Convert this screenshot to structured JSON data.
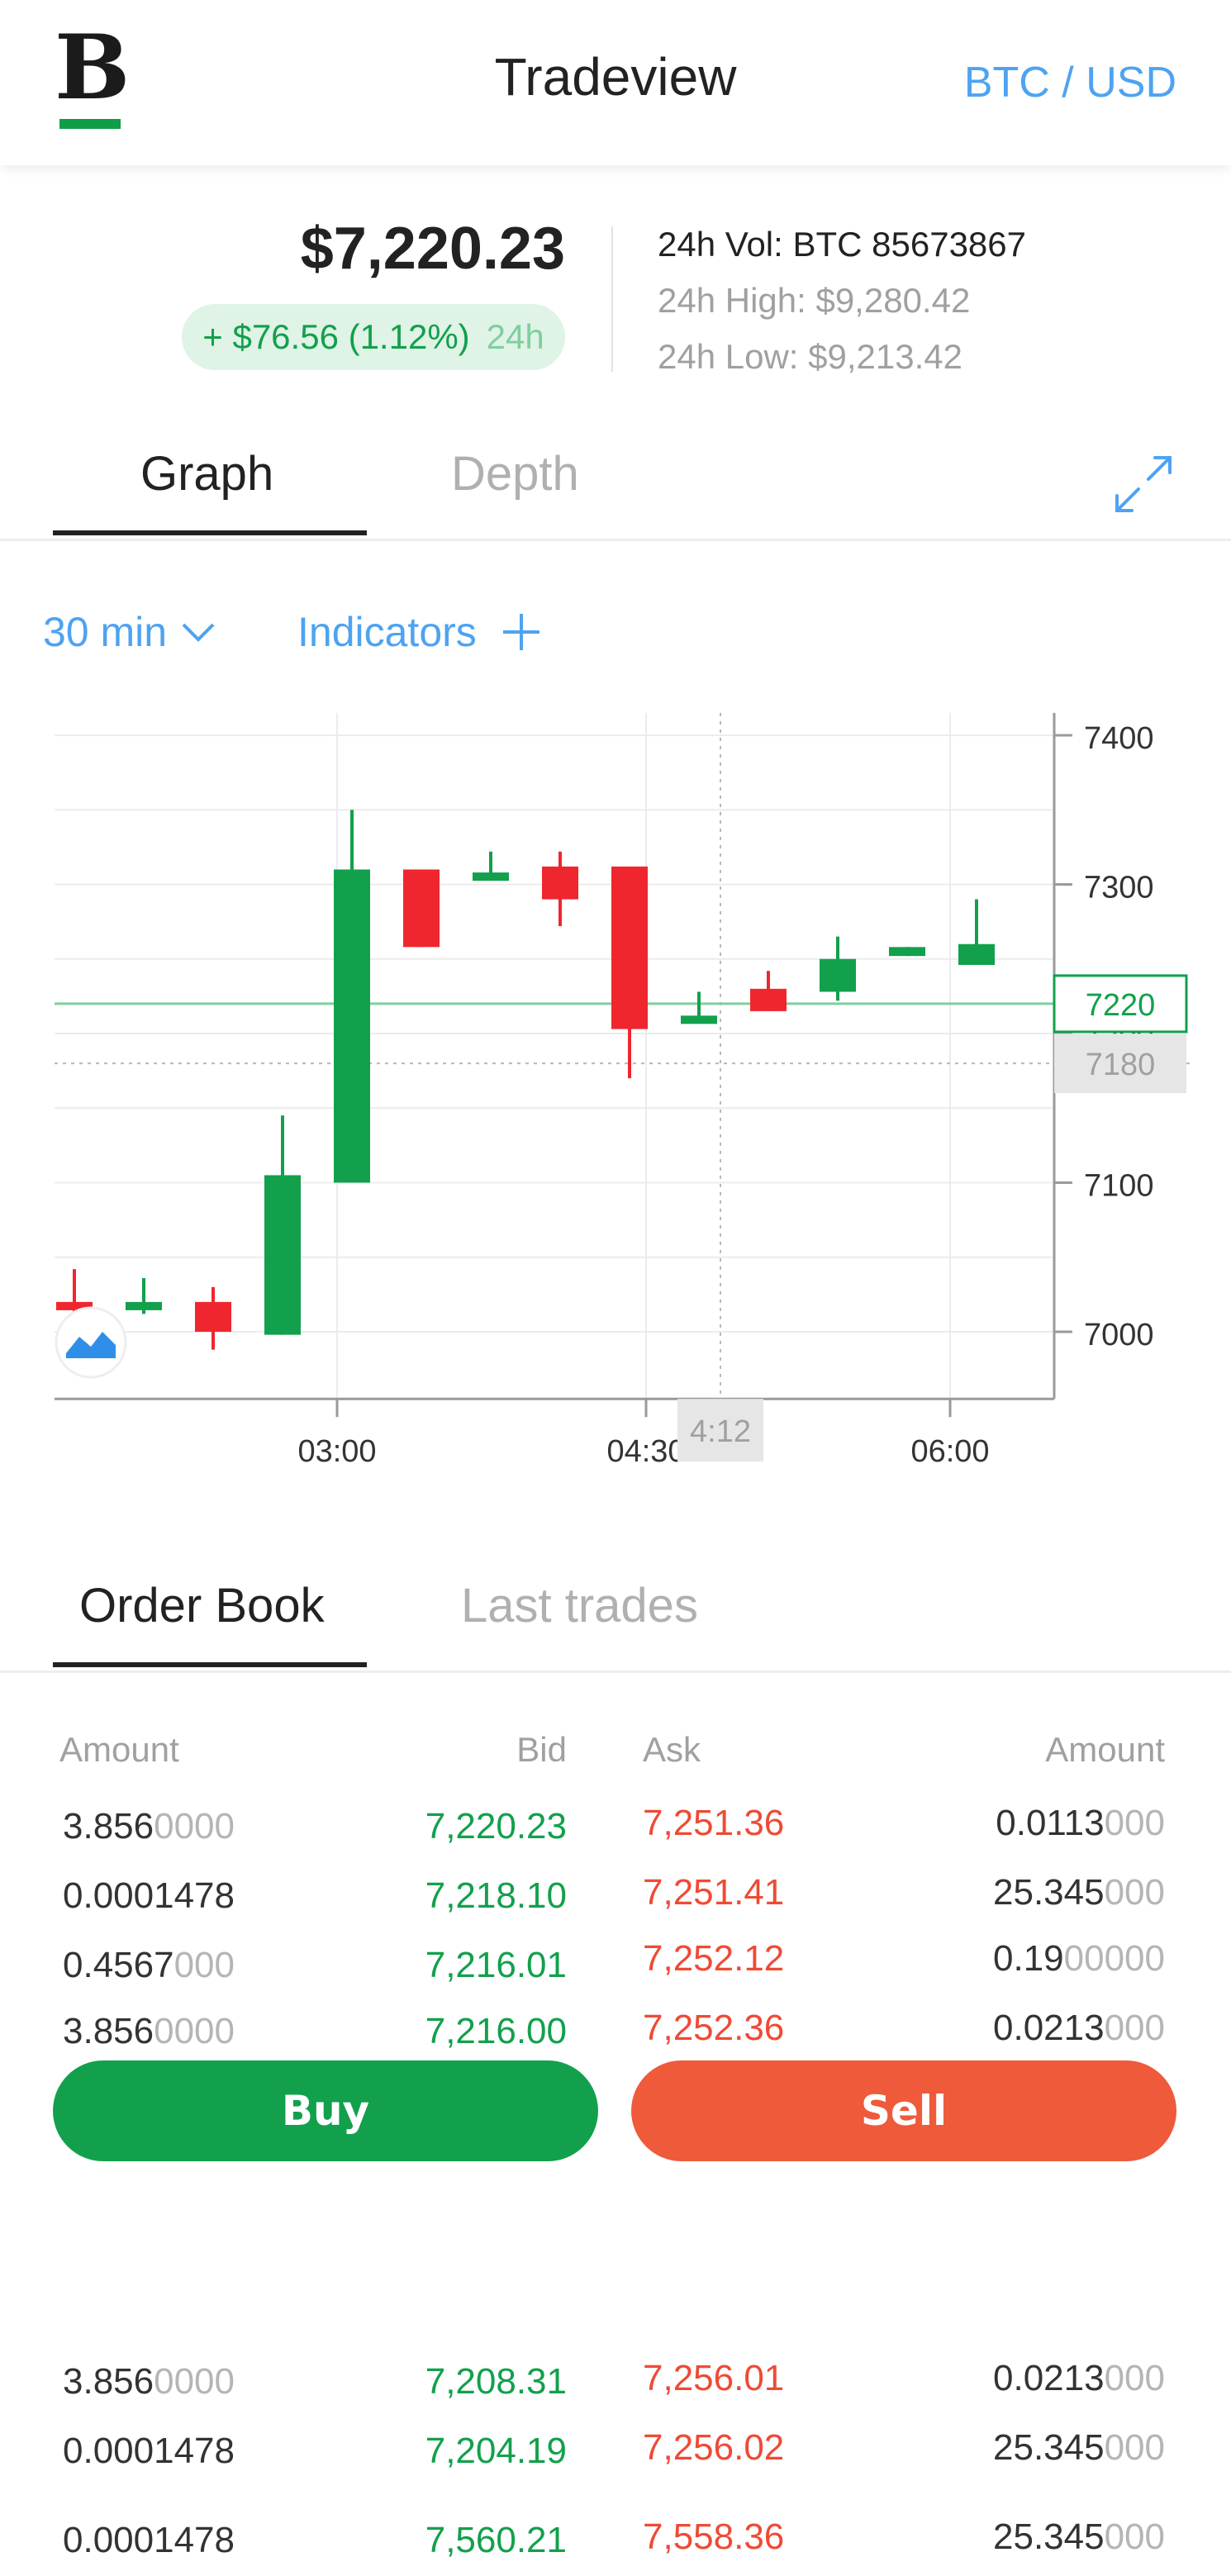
{
  "header": {
    "logo_letter": "B",
    "title": "Tradeview",
    "pair": "BTC / USD"
  },
  "ticker": {
    "price": "$7,220.23",
    "change": "+ $76.56 (1.12%)",
    "change_period": "24h",
    "volume": "24h Vol: BTC 85673867",
    "high": "24h High: $9,280.42",
    "low": "24h Low: $9,213.42"
  },
  "chart_tabs": [
    {
      "label": "Graph",
      "active": true
    },
    {
      "label": "Depth",
      "active": false
    }
  ],
  "controls": {
    "interval": "30 min",
    "indicators": "Indicators"
  },
  "colors": {
    "up": "#12a04c",
    "down": "#f0262e",
    "accent": "#4ea3f1",
    "sell": "#ee5a3a"
  },
  "chart_data": {
    "type": "candlestick",
    "ylim": [
      6955,
      7415
    ],
    "y_ticks": [
      "7400",
      "7300",
      "7200",
      "7100",
      "7000"
    ],
    "x_ticks": [
      "03:00",
      "04:30",
      "06:00"
    ],
    "current_price_label": "7220",
    "current_price": 7220,
    "crosshair_price_label": "7180",
    "crosshair_price": 7180,
    "crosshair_time_label": "4:12",
    "candles": [
      {
        "open": 7020,
        "close": 7018,
        "high": 7042,
        "low": 7008,
        "dir": "down"
      },
      {
        "open": 7015,
        "close": 7020,
        "high": 7036,
        "low": 7012,
        "dir": "up"
      },
      {
        "open": 7020,
        "close": 7000,
        "high": 7030,
        "low": 6988,
        "dir": "down"
      },
      {
        "open": 6998,
        "close": 7105,
        "high": 7145,
        "low": 6998,
        "dir": "up"
      },
      {
        "open": 7100,
        "close": 7310,
        "high": 7350,
        "low": 7100,
        "dir": "up"
      },
      {
        "open": 7310,
        "close": 7258,
        "high": 7310,
        "low": 7258,
        "dir": "down"
      },
      {
        "open": 7303,
        "close": 7308,
        "high": 7322,
        "low": 7303,
        "dir": "up"
      },
      {
        "open": 7312,
        "close": 7290,
        "high": 7322,
        "low": 7272,
        "dir": "down"
      },
      {
        "open": 7312,
        "close": 7203,
        "high": 7312,
        "low": 7170,
        "dir": "down"
      },
      {
        "open": 7208,
        "close": 7212,
        "high": 7228,
        "low": 7208,
        "dir": "up"
      },
      {
        "open": 7230,
        "close": 7215,
        "high": 7242,
        "low": 7215,
        "dir": "down"
      },
      {
        "open": 7228,
        "close": 7250,
        "high": 7265,
        "low": 7222,
        "dir": "up"
      },
      {
        "open": 7252,
        "close": 7258,
        "high": 7258,
        "low": 7252,
        "dir": "up"
      },
      {
        "open": 7246,
        "close": 7260,
        "high": 7290,
        "low": 7246,
        "dir": "up"
      }
    ]
  },
  "book_tabs": [
    {
      "label": "Order Book",
      "active": true
    },
    {
      "label": "Last trades",
      "active": false
    }
  ],
  "order_book": {
    "headers": {
      "amount_bid": "Amount",
      "bid": "Bid",
      "ask": "Ask",
      "amount_ask": "Amount"
    },
    "rows": [
      {
        "amt_bid": "3.856",
        "amt_bid_pad": "0000",
        "bid": "7,220.23",
        "ask": "7,251.36",
        "amt_ask": "0.0113",
        "amt_ask_pad": "000"
      },
      {
        "amt_bid": "0.0001478",
        "amt_bid_pad": "",
        "bid": "7,218.10",
        "ask": "7,251.41",
        "amt_ask": "25.345",
        "amt_ask_pad": "000"
      },
      {
        "amt_bid": "0.4567",
        "amt_bid_pad": "000",
        "bid": "7,216.01",
        "ask": "7,252.12",
        "amt_ask": "0.19",
        "amt_ask_pad": "00000"
      },
      {
        "amt_bid": "3.856",
        "amt_bid_pad": "0000",
        "bid": "7,216.00",
        "ask": "7,252.36",
        "amt_ask": "0.0213",
        "amt_ask_pad": "000"
      },
      {
        "amt_bid": "3.856",
        "amt_bid_pad": "0000",
        "bid": "7,208.31",
        "ask": "7,256.01",
        "amt_ask": "0.0213",
        "amt_ask_pad": "000"
      },
      {
        "amt_bid": "0.0001478",
        "amt_bid_pad": "",
        "bid": "7,204.19",
        "ask": "7,256.02",
        "amt_ask": "25.345",
        "amt_ask_pad": "000"
      },
      {
        "amt_bid": "0.0001478",
        "amt_bid_pad": "",
        "bid": "7,560.21",
        "ask": "7,558.36",
        "amt_ask": "25.345",
        "amt_ask_pad": "000"
      }
    ]
  },
  "actions": {
    "buy": "Buy",
    "sell": "Sell"
  }
}
